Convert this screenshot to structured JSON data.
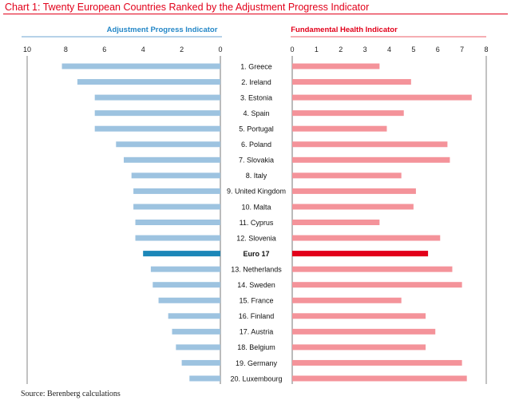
{
  "title": "Chart 1: Twenty European Countries Ranked by the Adjustment Progress Indicator",
  "source": "Source: Berenberg calculations",
  "colors": {
    "title": "#e2001a",
    "left_bar": "#9dc3e0",
    "left_highlight": "#1c87b8",
    "left_header": "#2487c7",
    "right_bar": "#f4939a",
    "right_highlight": "#e2001a",
    "right_header": "#e2001a"
  },
  "chart_data": {
    "type": "bar",
    "orientation": "horizontal",
    "layout": "butterfly",
    "categories": [
      "1. Greece",
      "2. Ireland",
      "3. Estonia",
      "4. Spain",
      "5. Portugal",
      "6. Poland",
      "7. Slovakia",
      "8. Italy",
      "9. United Kingdom",
      "10. Malta",
      "11. Cyprus",
      "12. Slovenia",
      "Euro 17",
      "13. Netherlands",
      "14. Sweden",
      "15. France",
      "16. Finland",
      "17. Austria",
      "18. Belgium",
      "19. Germany",
      "20. Luxembourg"
    ],
    "highlight": "Euro 17",
    "series": [
      {
        "name": "Adjustment Progress Indicator",
        "side": "left",
        "xlim": [
          10,
          0
        ],
        "ticks": [
          "10",
          "8",
          "6",
          "4",
          "2",
          "0"
        ],
        "values": [
          8.2,
          7.4,
          6.5,
          6.5,
          6.5,
          5.4,
          5.0,
          4.6,
          4.5,
          4.5,
          4.4,
          4.4,
          4.0,
          3.6,
          3.5,
          3.2,
          2.7,
          2.5,
          2.3,
          2.0,
          1.6
        ]
      },
      {
        "name": "Fundamental Health Indicator",
        "side": "right",
        "xlim": [
          0,
          8
        ],
        "ticks": [
          "0",
          "1",
          "2",
          "3",
          "4",
          "5",
          "6",
          "7",
          "8"
        ],
        "values": [
          3.6,
          4.9,
          7.4,
          4.6,
          3.9,
          6.4,
          6.5,
          4.5,
          5.1,
          5.0,
          3.6,
          6.1,
          5.6,
          6.6,
          7.0,
          4.5,
          5.5,
          5.9,
          5.5,
          7.0,
          7.2
        ]
      }
    ]
  }
}
